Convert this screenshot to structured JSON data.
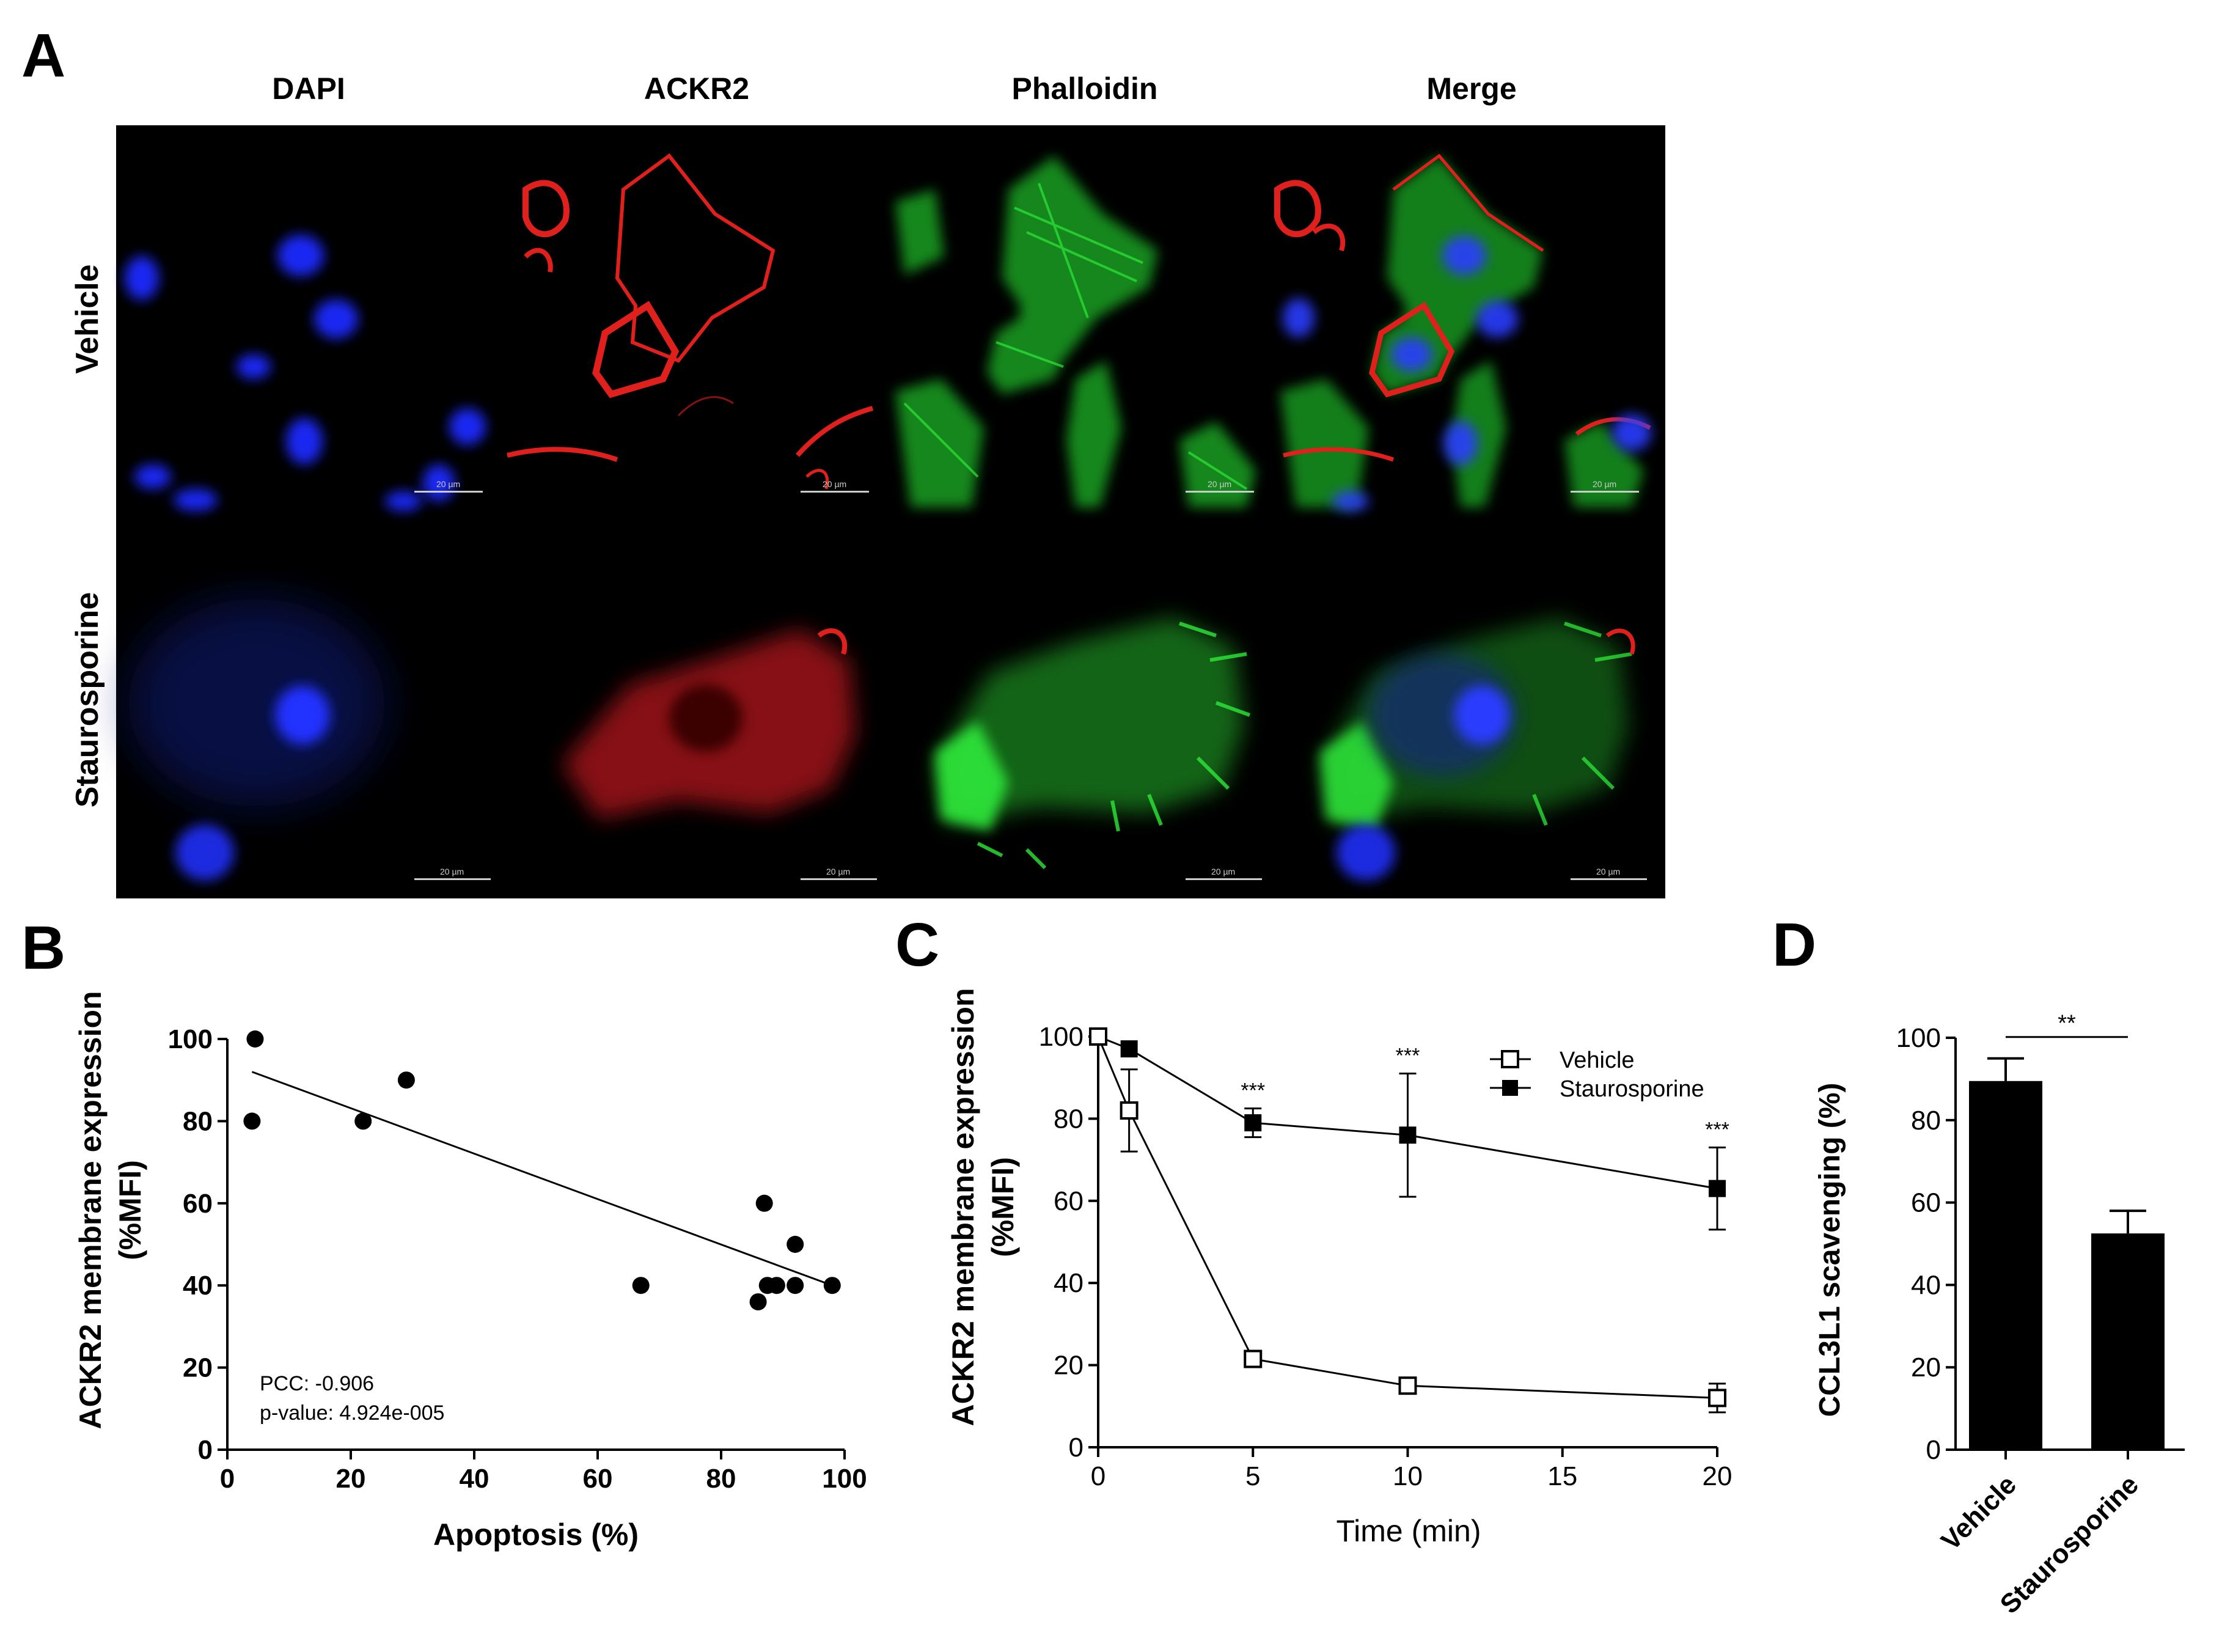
{
  "panel_labels": {
    "A": "A",
    "B": "B",
    "C": "C",
    "D": "D"
  },
  "microscopy": {
    "columns": [
      "DAPI",
      "ACKR2",
      "Phalloidin",
      "Merge"
    ],
    "rows": [
      "Vehicle",
      "Staurosporine"
    ],
    "scale_bar_label": "20 µm",
    "channel_colors": {
      "DAPI": "#1a1aff",
      "ACKR2": "#e0201c",
      "Phalloidin": "#22c12a"
    }
  },
  "chart_data": [
    {
      "panel": "B",
      "type": "scatter",
      "xlabel": "Apoptosis (%)",
      "ylabel": "ACKR2 membrane expression",
      "ylabel_line2": "(%MFI)",
      "xlim": [
        0,
        100
      ],
      "ylim": [
        0,
        100
      ],
      "xticks": [
        0,
        20,
        40,
        60,
        80,
        100
      ],
      "yticks": [
        0,
        20,
        40,
        60,
        80,
        100
      ],
      "points": [
        {
          "x": 4,
          "y": 80
        },
        {
          "x": 4.5,
          "y": 100
        },
        {
          "x": 22,
          "y": 80
        },
        {
          "x": 29,
          "y": 90
        },
        {
          "x": 67,
          "y": 40
        },
        {
          "x": 86,
          "y": 36
        },
        {
          "x": 87,
          "y": 60
        },
        {
          "x": 87.5,
          "y": 40
        },
        {
          "x": 89,
          "y": 40
        },
        {
          "x": 92,
          "y": 50
        },
        {
          "x": 92,
          "y": 40
        },
        {
          "x": 98,
          "y": 40
        }
      ],
      "fit_line": {
        "x": [
          4,
          98
        ],
        "y": [
          92,
          40
        ]
      },
      "annotations": [
        "PCC: -0.906",
        "p-value: 4.924e-005"
      ],
      "marker_color": "#000000"
    },
    {
      "panel": "C",
      "type": "line",
      "xlabel": "Time (min)",
      "ylabel": "ACKR2 membrane expression",
      "ylabel_line2": "(%MFI)",
      "xlim": [
        0,
        20
      ],
      "ylim": [
        0,
        100
      ],
      "xticks": [
        0,
        5,
        10,
        15,
        20
      ],
      "yticks": [
        0,
        20,
        40,
        60,
        80,
        100
      ],
      "x": [
        0,
        1,
        5,
        10,
        20
      ],
      "series": [
        {
          "name": "Vehicle",
          "marker": "open-square",
          "values": [
            100,
            82,
            21.5,
            15,
            12
          ],
          "errors": [
            0,
            10,
            2,
            1.5,
            3.5
          ]
        },
        {
          "name": "Staurosporine",
          "marker": "filled-square",
          "values": [
            100,
            97,
            79,
            76,
            63
          ],
          "errors": [
            0,
            0,
            3.5,
            15,
            10
          ]
        }
      ],
      "significance": [
        {
          "x": 5,
          "label": "***"
        },
        {
          "x": 10,
          "label": "***"
        },
        {
          "x": 20,
          "label": "***"
        }
      ],
      "legend_position": "top-right"
    },
    {
      "panel": "D",
      "type": "bar",
      "categories": [
        "Vehicle",
        "Staurosporine"
      ],
      "values": [
        89.5,
        52.5
      ],
      "errors": [
        5.5,
        5.5
      ],
      "ylabel": "CCL3L1 scavenging (%)",
      "ylim": [
        0,
        100
      ],
      "yticks": [
        0,
        20,
        40,
        60,
        80,
        100
      ],
      "significance": "**",
      "bar_color": "#000000"
    }
  ]
}
